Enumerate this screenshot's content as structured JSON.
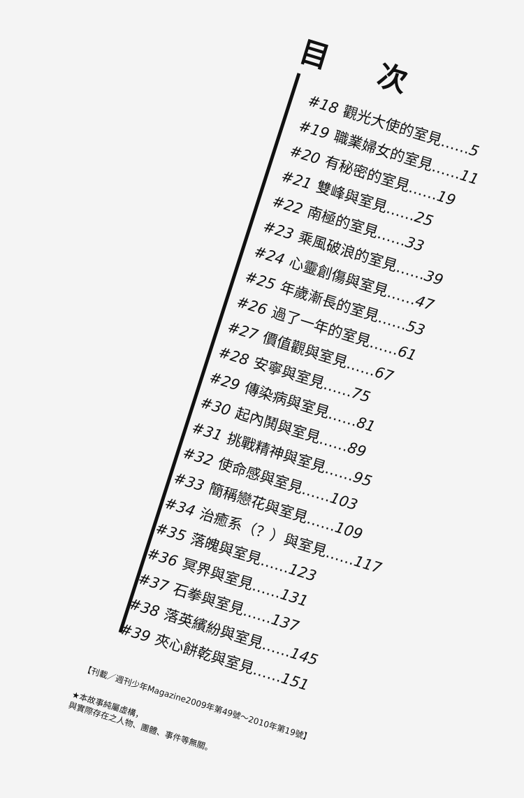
{
  "title": "目 次",
  "entries": [
    {
      "num": "#18",
      "title": "觀光大使的室見",
      "page": "5"
    },
    {
      "num": "#19",
      "title": "職業婦女的室見",
      "page": "11"
    },
    {
      "num": "#20",
      "title": "有秘密的室見",
      "page": "19"
    },
    {
      "num": "#21",
      "title": "雙峰與室見",
      "page": "25"
    },
    {
      "num": "#22",
      "title": "南極的室見",
      "page": "33"
    },
    {
      "num": "#23",
      "title": "乘風破浪的室見",
      "page": "39"
    },
    {
      "num": "#24",
      "title": "心靈創傷與室見",
      "page": "47"
    },
    {
      "num": "#25",
      "title": "年歲漸長的室見",
      "page": "53"
    },
    {
      "num": "#26",
      "title": "過了一年的室見",
      "page": "61"
    },
    {
      "num": "#27",
      "title": "價值觀與室見",
      "page": "67"
    },
    {
      "num": "#28",
      "title": "安寧與室見",
      "page": "75"
    },
    {
      "num": "#29",
      "title": "傳染病與室見",
      "page": "81"
    },
    {
      "num": "#30",
      "title": "起內鬨與室見",
      "page": "89"
    },
    {
      "num": "#31",
      "title": "挑戰精神與室見",
      "page": "95"
    },
    {
      "num": "#32",
      "title": "使命感與室見",
      "page": "103"
    },
    {
      "num": "#33",
      "title": "簡稱戀花與室見",
      "page": "109"
    },
    {
      "num": "#34",
      "title": "治癒系（？）與室見",
      "page": "117"
    },
    {
      "num": "#35",
      "title": "落魄與室見",
      "page": "123"
    },
    {
      "num": "#36",
      "title": "冥界與室見",
      "page": "131"
    },
    {
      "num": "#37",
      "title": "石拳與室見",
      "page": "137"
    },
    {
      "num": "#38",
      "title": "落英繽紛與室見",
      "page": "145"
    },
    {
      "num": "#39",
      "title": "夾心餅乾與室見",
      "page": "151"
    }
  ],
  "leader": "……",
  "notes": {
    "serialization": "【刊載／週刊少年Magazine2009年第49號～2010年第19號】",
    "disclaimer_1": "★本故事純屬虛構，",
    "disclaimer_2": "與實際存在之人物、團體、事件等無關。"
  }
}
